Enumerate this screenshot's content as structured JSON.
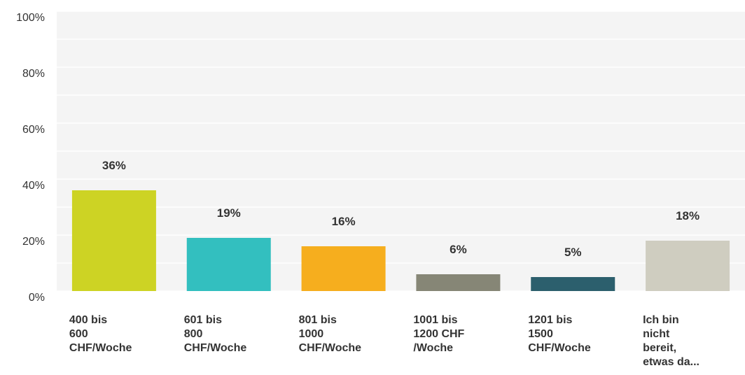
{
  "chart_data": {
    "type": "bar",
    "categories": [
      [
        "400 bis",
        "600",
        "CHF/Woche"
      ],
      [
        "601 bis",
        "800",
        "CHF/Woche"
      ],
      [
        "801 bis",
        "1000",
        "CHF/Woche"
      ],
      [
        "1001 bis",
        "1200 CHF",
        "/Woche"
      ],
      [
        "1201 bis",
        "1500",
        "CHF/Woche"
      ],
      [
        "Ich bin",
        "nicht",
        "bereit,",
        "etwas da..."
      ]
    ],
    "values": [
      36,
      19,
      16,
      6,
      5,
      18
    ],
    "value_labels": [
      "36%",
      "19%",
      "16%",
      "6%",
      "5%",
      "18%"
    ],
    "colors": [
      "#cdd324",
      "#33bfbf",
      "#f6ae1e",
      "#868676",
      "#2c5f6d",
      "#cfcdc0"
    ],
    "ylim": [
      0,
      100
    ],
    "yticks": [
      {
        "value": 0,
        "label": "0%"
      },
      {
        "value": 20,
        "label": "20%"
      },
      {
        "value": 40,
        "label": "40%"
      },
      {
        "value": 60,
        "label": "60%"
      },
      {
        "value": 80,
        "label": "80%"
      },
      {
        "value": 100,
        "label": "100%"
      }
    ],
    "minor_yticks": [
      10,
      30,
      50,
      70,
      90
    ],
    "grid": true
  }
}
